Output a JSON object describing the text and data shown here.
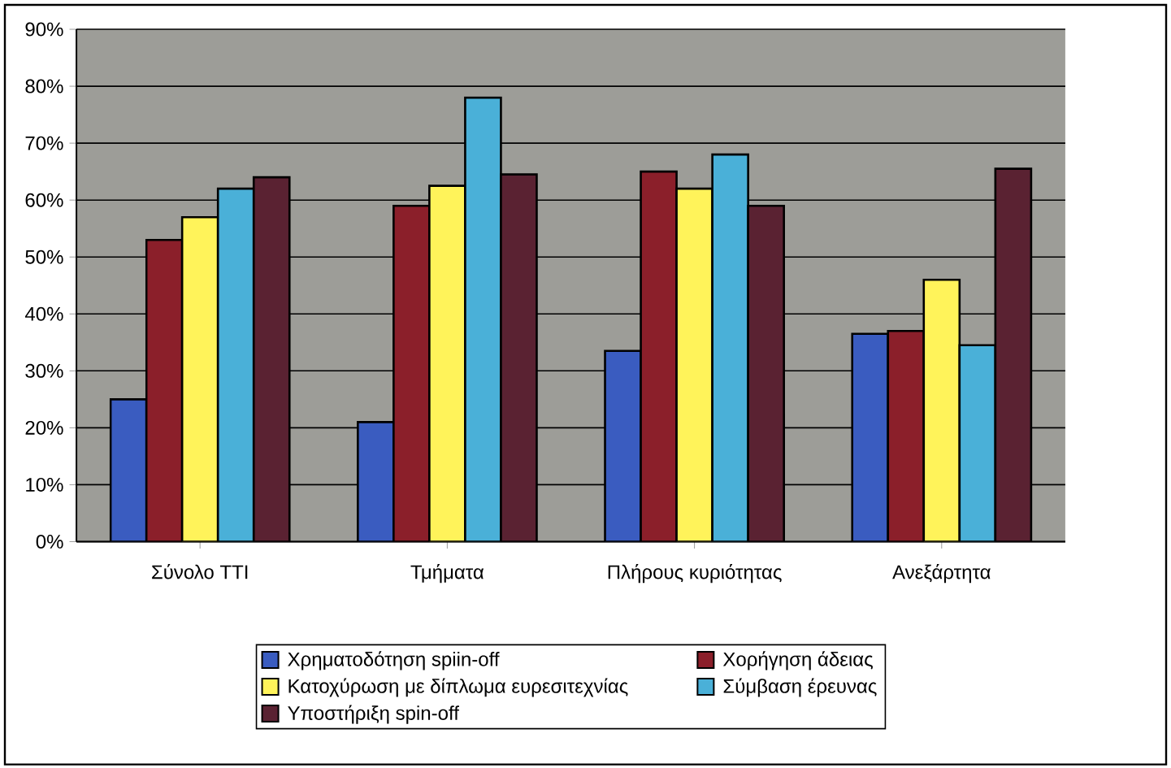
{
  "chart_data": {
    "type": "bar",
    "categories": [
      "Σύνολο ΤΤΙ",
      "Τμήματα",
      "Πλήρους κυριότητας",
      "Ανεξάρτητα"
    ],
    "series": [
      {
        "name": "Χρηματοδότηση spiin-off",
        "color": "#3a5cc0",
        "values": [
          25,
          21,
          33.5,
          36.5
        ]
      },
      {
        "name": "Χορήγηση άδειας",
        "color": "#8b1f2a",
        "values": [
          53,
          59,
          65,
          37
        ]
      },
      {
        "name": "Κατοχύρωση με δίπλωμα ευρεσιτεχνίας",
        "color": "#fff35a",
        "values": [
          57,
          62.5,
          62,
          46
        ]
      },
      {
        "name": "Σύμβαση έρευνας",
        "color": "#4ab0d8",
        "values": [
          62,
          78,
          68,
          34.5
        ]
      },
      {
        "name": "Υποστήριξη spin-off",
        "color": "#5a2232",
        "values": [
          64,
          64.5,
          59,
          65.5
        ]
      }
    ],
    "ylim": [
      0,
      90
    ],
    "yticks": [
      {
        "value": 0,
        "label": "0%"
      },
      {
        "value": 10,
        "label": "10%"
      },
      {
        "value": 20,
        "label": "20%"
      },
      {
        "value": 30,
        "label": "30%"
      },
      {
        "value": 40,
        "label": "40%"
      },
      {
        "value": 50,
        "label": "50%"
      },
      {
        "value": 60,
        "label": "60%"
      },
      {
        "value": 70,
        "label": "70%"
      },
      {
        "value": 80,
        "label": "80%"
      },
      {
        "value": 90,
        "label": "90%"
      }
    ],
    "grid": "y",
    "legend": "bottom"
  }
}
